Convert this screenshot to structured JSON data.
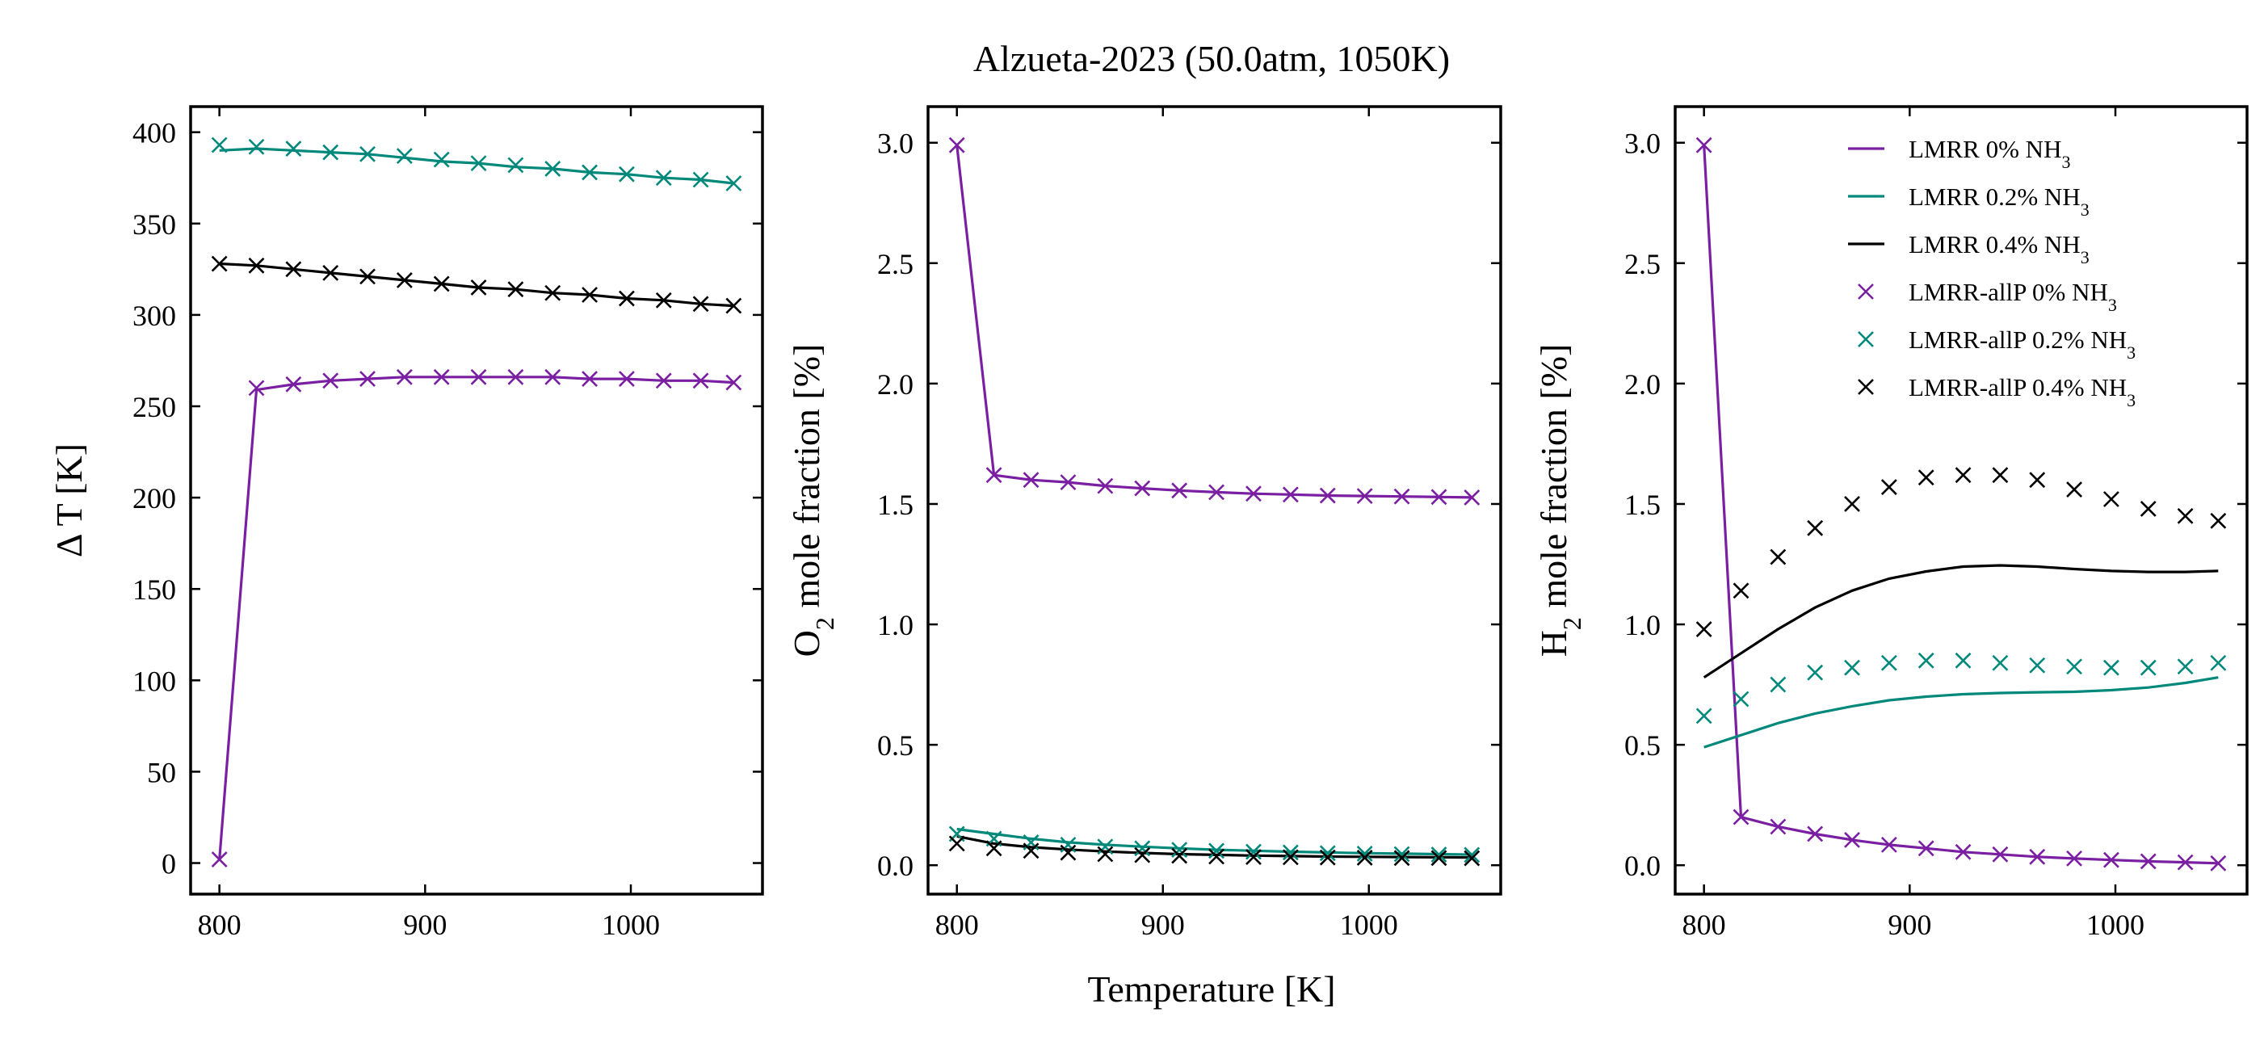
{
  "title": "Alzueta-2023 (50.0atm, 1050K)",
  "xlabel": "Temperature [K]",
  "colors": {
    "purple": "#7a1fa2",
    "teal": "#00897b",
    "black": "#000000"
  },
  "legend": {
    "placement": "top-right of third panel",
    "entries": [
      {
        "label": "LMRR 0% NH",
        "sub": "3",
        "color": "#7a1fa2",
        "marker": "line"
      },
      {
        "label": "LMRR 0.2% NH",
        "sub": "3",
        "color": "#00897b",
        "marker": "line"
      },
      {
        "label": "LMRR 0.4% NH",
        "sub": "3",
        "color": "#000000",
        "marker": "line"
      },
      {
        "label": "LMRR-allP 0% NH",
        "sub": "3",
        "color": "#7a1fa2",
        "marker": "x"
      },
      {
        "label": "LMRR-allP 0.2% NH",
        "sub": "3",
        "color": "#00897b",
        "marker": "x"
      },
      {
        "label": "LMRR-allP 0.4% NH",
        "sub": "3",
        "color": "#000000",
        "marker": "x"
      }
    ]
  },
  "chart_data": [
    {
      "type": "line",
      "ylabel": "Δ T [K]",
      "xlim": [
        786,
        1064
      ],
      "ylim": [
        -17,
        414
      ],
      "xticks": [
        800,
        900,
        1000
      ],
      "yticks": [
        0,
        50,
        100,
        150,
        200,
        250,
        300,
        350,
        400
      ],
      "x": [
        800,
        818,
        836,
        854,
        872,
        890,
        908,
        926,
        944,
        962,
        980,
        998,
        1016,
        1034,
        1050
      ],
      "series": [
        {
          "name": "LMRR 0% NH3",
          "style": "line",
          "color": "#7a1fa2",
          "values": [
            2,
            259,
            262,
            264,
            265,
            266,
            266,
            266,
            266,
            266,
            265,
            265,
            264,
            264,
            263
          ]
        },
        {
          "name": "LMRR 0.2% NH3",
          "style": "line",
          "color": "#00897b",
          "values": [
            390,
            391,
            390,
            389,
            388,
            386,
            384,
            383,
            381,
            380,
            378,
            377,
            375,
            374,
            372
          ]
        },
        {
          "name": "LMRR 0.4% NH3",
          "style": "line",
          "color": "#000000",
          "values": [
            328,
            327,
            325,
            323,
            321,
            319,
            317,
            315,
            314,
            312,
            311,
            309,
            308,
            306,
            305
          ]
        },
        {
          "name": "LMRR-allP 0% NH3",
          "style": "x",
          "color": "#7a1fa2",
          "values": [
            2,
            260,
            262,
            264,
            265,
            266,
            266,
            266,
            266,
            266,
            265,
            265,
            264,
            264,
            263
          ]
        },
        {
          "name": "LMRR-allP 0.2% NH3",
          "style": "x",
          "color": "#00897b",
          "values": [
            393,
            392,
            391,
            389,
            388,
            387,
            385,
            383,
            382,
            380,
            378,
            377,
            375,
            374,
            372
          ]
        },
        {
          "name": "LMRR-allP 0.4% NH3",
          "style": "x",
          "color": "#000000",
          "values": [
            328,
            327,
            325,
            323,
            321,
            319,
            317,
            315,
            314,
            312,
            311,
            309,
            308,
            306,
            305
          ]
        }
      ]
    },
    {
      "type": "line",
      "ylabel": "O2 mole fraction [%]",
      "ylabel_parts": [
        "O",
        "2",
        " mole fraction [%]"
      ],
      "xlim": [
        786,
        1064
      ],
      "ylim": [
        -0.12,
        3.15
      ],
      "xticks": [
        800,
        900,
        1000
      ],
      "yticks": [
        0.0,
        0.5,
        1.0,
        1.5,
        2.0,
        2.5,
        3.0
      ],
      "x": [
        800,
        818,
        836,
        854,
        872,
        890,
        908,
        926,
        944,
        962,
        980,
        998,
        1016,
        1034,
        1050
      ],
      "series": [
        {
          "name": "LMRR 0% NH3",
          "style": "line",
          "color": "#7a1fa2",
          "values": [
            2.99,
            1.62,
            1.6,
            1.59,
            1.575,
            1.565,
            1.556,
            1.549,
            1.543,
            1.539,
            1.535,
            1.533,
            1.531,
            1.529,
            1.527
          ]
        },
        {
          "name": "LMRR 0.2% NH3",
          "style": "line",
          "color": "#00897b",
          "values": [
            0.15,
            0.13,
            0.11,
            0.095,
            0.085,
            0.077,
            0.07,
            0.064,
            0.06,
            0.056,
            0.053,
            0.05,
            0.048,
            0.046,
            0.044
          ]
        },
        {
          "name": "LMRR 0.4% NH3",
          "style": "line",
          "color": "#000000",
          "values": [
            0.12,
            0.09,
            0.075,
            0.065,
            0.057,
            0.051,
            0.046,
            0.043,
            0.04,
            0.038,
            0.036,
            0.035,
            0.034,
            0.033,
            0.032
          ]
        },
        {
          "name": "LMRR-allP 0% NH3",
          "style": "x",
          "color": "#7a1fa2",
          "values": [
            2.99,
            1.62,
            1.6,
            1.59,
            1.575,
            1.565,
            1.556,
            1.549,
            1.543,
            1.539,
            1.535,
            1.533,
            1.531,
            1.529,
            1.527
          ]
        },
        {
          "name": "LMRR-allP 0.2% NH3",
          "style": "x",
          "color": "#00897b",
          "values": [
            0.13,
            0.11,
            0.095,
            0.085,
            0.077,
            0.07,
            0.064,
            0.06,
            0.056,
            0.053,
            0.05,
            0.048,
            0.046,
            0.044,
            0.043
          ]
        },
        {
          "name": "LMRR-allP 0.4% NH3",
          "style": "x",
          "color": "#000000",
          "values": [
            0.09,
            0.07,
            0.06,
            0.052,
            0.046,
            0.042,
            0.039,
            0.036,
            0.034,
            0.033,
            0.032,
            0.031,
            0.03,
            0.03,
            0.029
          ]
        }
      ]
    },
    {
      "type": "line",
      "ylabel": "H2 mole fraction [%]",
      "ylabel_parts": [
        "H",
        "2",
        " mole fraction [%]"
      ],
      "xlim": [
        786,
        1064
      ],
      "ylim": [
        -0.12,
        3.15
      ],
      "xticks": [
        800,
        900,
        1000
      ],
      "yticks": [
        0.0,
        0.5,
        1.0,
        1.5,
        2.0,
        2.5,
        3.0
      ],
      "x": [
        800,
        818,
        836,
        854,
        872,
        890,
        908,
        926,
        944,
        962,
        980,
        998,
        1016,
        1034,
        1050
      ],
      "series": [
        {
          "name": "LMRR 0% NH3",
          "style": "line",
          "color": "#7a1fa2",
          "values": [
            2.99,
            0.2,
            0.16,
            0.13,
            0.105,
            0.085,
            0.07,
            0.055,
            0.045,
            0.035,
            0.028,
            0.022,
            0.016,
            0.012,
            0.008
          ]
        },
        {
          "name": "LMRR 0.2% NH3",
          "style": "line",
          "color": "#00897b",
          "values": [
            0.49,
            0.54,
            0.59,
            0.63,
            0.66,
            0.685,
            0.7,
            0.71,
            0.715,
            0.718,
            0.72,
            0.727,
            0.738,
            0.757,
            0.78
          ]
        },
        {
          "name": "LMRR 0.4% NH3",
          "style": "line",
          "color": "#000000",
          "values": [
            0.78,
            0.88,
            0.98,
            1.07,
            1.14,
            1.19,
            1.22,
            1.24,
            1.245,
            1.24,
            1.23,
            1.222,
            1.218,
            1.218,
            1.222
          ]
        },
        {
          "name": "LMRR-allP 0% NH3",
          "style": "x",
          "color": "#7a1fa2",
          "values": [
            2.99,
            0.2,
            0.16,
            0.13,
            0.105,
            0.085,
            0.07,
            0.055,
            0.045,
            0.035,
            0.028,
            0.022,
            0.016,
            0.012,
            0.008
          ]
        },
        {
          "name": "LMRR-allP 0.2% NH3",
          "style": "x",
          "color": "#00897b",
          "values": [
            0.62,
            0.69,
            0.75,
            0.8,
            0.82,
            0.84,
            0.85,
            0.85,
            0.84,
            0.83,
            0.825,
            0.82,
            0.82,
            0.825,
            0.84
          ]
        },
        {
          "name": "LMRR-allP 0.4% NH3",
          "style": "x",
          "color": "#000000",
          "values": [
            0.98,
            1.14,
            1.28,
            1.4,
            1.5,
            1.57,
            1.61,
            1.62,
            1.62,
            1.6,
            1.56,
            1.52,
            1.48,
            1.45,
            1.43
          ]
        }
      ]
    }
  ]
}
